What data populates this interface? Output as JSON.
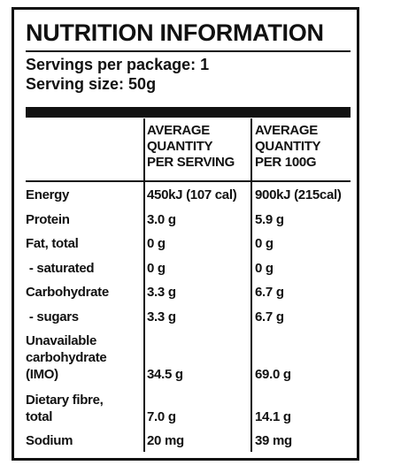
{
  "title": "NUTRITION INFORMATION",
  "servings_per_package": "Servings per package: 1",
  "serving_size": "Serving size: 50g",
  "columns": {
    "per_serving": [
      "AVERAGE",
      "QUANTITY",
      "PER SERVING"
    ],
    "per_100g": [
      "AVERAGE",
      "QUANTITY",
      "PER 100G"
    ]
  },
  "rows": [
    {
      "label": [
        "Energy"
      ],
      "serving": "450kJ (107 cal)",
      "per100": "900kJ (215cal)"
    },
    {
      "label": [
        "Protein"
      ],
      "serving": "3.0 g",
      "per100": "5.9 g"
    },
    {
      "label": [
        "Fat, total"
      ],
      "serving": "0 g",
      "per100": "0 g"
    },
    {
      "label": [
        " - saturated"
      ],
      "serving": "0 g",
      "per100": "0 g"
    },
    {
      "label": [
        "Carbohydrate"
      ],
      "serving": "3.3 g",
      "per100": "6.7 g"
    },
    {
      "label": [
        " - sugars"
      ],
      "serving": "3.3 g",
      "per100": "6.7 g"
    },
    {
      "label": [
        "Unavailable",
        "carbohydrate",
        "(IMO)"
      ],
      "serving": "34.5 g",
      "per100": "69.0 g"
    },
    {
      "label": [
        "Dietary fibre,",
        "total"
      ],
      "serving": "7.0 g",
      "per100": "14.1 g"
    },
    {
      "label": [
        "Sodium"
      ],
      "serving": "20 mg",
      "per100": "39 mg"
    }
  ]
}
